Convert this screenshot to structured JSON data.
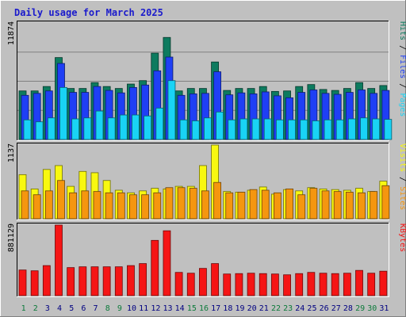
{
  "chart_data": {
    "type": "bar",
    "title": "Daily usage for March 2025",
    "categories": [
      "1",
      "2",
      "3",
      "4",
      "5",
      "6",
      "7",
      "8",
      "9",
      "10",
      "11",
      "12",
      "13",
      "14",
      "15",
      "16",
      "17",
      "18",
      "19",
      "20",
      "21",
      "22",
      "23",
      "24",
      "25",
      "26",
      "27",
      "28",
      "29",
      "30",
      "31"
    ],
    "weekend_days": [
      "1",
      "2",
      "8",
      "9",
      "15",
      "16",
      "22",
      "23",
      "29",
      "30"
    ],
    "panels": [
      {
        "name": "hits-files-pages",
        "ymax_label": "11874",
        "ymax": 11874,
        "series_labels": [
          "Pages",
          "Files",
          "Hits"
        ],
        "series": [
          {
            "name": "Hits",
            "color": "#0d7b5f",
            "values": [
              4950,
              4950,
              5400,
              8350,
              5200,
              5200,
              5800,
              5400,
              5200,
              5650,
              6000,
              8800,
              10400,
              4950,
              5200,
              5200,
              7900,
              5000,
              5200,
              5200,
              5400,
              4900,
              4950,
              5400,
              5600,
              5100,
              5000,
              5200,
              5800,
              5200,
              5500
            ]
          },
          {
            "name": "Files",
            "color": "#1f3ff5",
            "values": [
              4500,
              4700,
              4950,
              7750,
              4800,
              4800,
              5400,
              5000,
              4750,
              5300,
              5550,
              7000,
              8400,
              4500,
              4650,
              4700,
              6900,
              4550,
              4750,
              4650,
              4850,
              4450,
              4250,
              4800,
              5050,
              4700,
              4600,
              4800,
              5050,
              4700,
              5000
            ]
          },
          {
            "name": "Pages",
            "color": "#19d3f5",
            "values": [
              2000,
              1800,
              2200,
              5300,
              2100,
              2200,
              2900,
              2200,
              2500,
              2500,
              2400,
              3200,
              6000,
              2000,
              1900,
              2200,
              2800,
              2000,
              2100,
              2100,
              2100,
              2000,
              2000,
              2000,
              1900,
              2000,
              2000,
              2100,
              2200,
              2100,
              2050
            ]
          }
        ]
      },
      {
        "name": "visits-sites",
        "ymax_label": "1137",
        "ymax": 1137,
        "series_labels": [
          "Sites",
          "Visits"
        ],
        "series": [
          {
            "name": "Visits",
            "color": "#f8f810",
            "values": [
              680,
              460,
              760,
              820,
              500,
              730,
              710,
              590,
              440,
              400,
              430,
              470,
              460,
              500,
              500,
              820,
              1137,
              420,
              410,
              440,
              490,
              380,
              450,
              430,
              480,
              460,
              450,
              440,
              470,
              420,
              580
            ]
          },
          {
            "name": "Sites",
            "color": "#f5960f",
            "values": [
              430,
              370,
              430,
              590,
              400,
              430,
              420,
              400,
              400,
              370,
              370,
              400,
              480,
              480,
              470,
              430,
              560,
              400,
              410,
              450,
              440,
              400,
              460,
              370,
              470,
              430,
              420,
              410,
              400,
              420,
              510
            ]
          }
        ]
      },
      {
        "name": "kbytes",
        "ymax_label": "881129",
        "ymax": 881129,
        "series_labels": [
          "KBytes"
        ],
        "series": [
          {
            "name": "KBytes",
            "color": "#f51515",
            "values": [
              320000,
              310000,
              375000,
              881129,
              350000,
              360000,
              360000,
              360000,
              360000,
              375000,
              400000,
              690000,
              810000,
              290000,
              280000,
              340000,
              400000,
              270000,
              275000,
              280000,
              275000,
              270000,
              260000,
              275000,
              290000,
              280000,
              275000,
              280000,
              315000,
              280000,
              305000
            ]
          }
        ]
      }
    ]
  }
}
